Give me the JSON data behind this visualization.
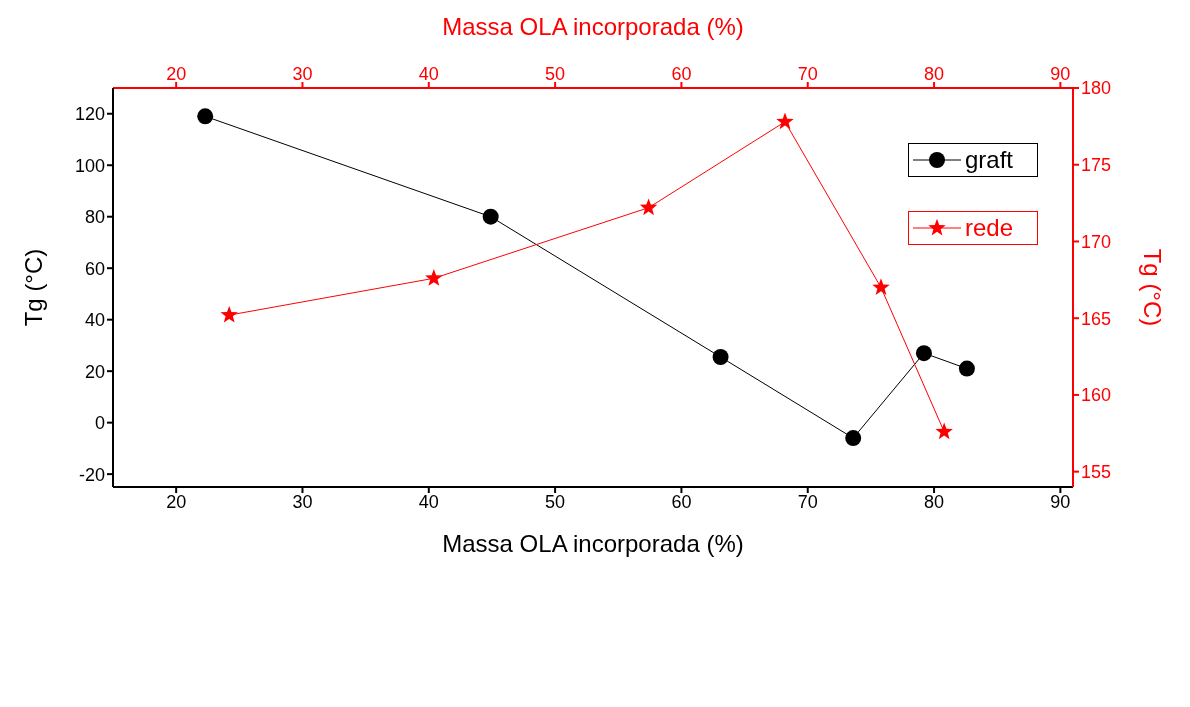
{
  "chart_data": {
    "type": "line",
    "xlabel": "Massa OLA incorporada (%)",
    "x2label": "Massa OLA incorporada (%)",
    "ylabel": "Tg (°C)",
    "y2label": "Tg (°C)",
    "xlim": [
      15,
      91
    ],
    "xticks": [
      20,
      30,
      40,
      50,
      60,
      70,
      80,
      90
    ],
    "x2lim": [
      15,
      91
    ],
    "x2ticks": [
      20,
      30,
      40,
      50,
      60,
      70,
      80,
      90
    ],
    "ylim": [
      -25,
      130
    ],
    "yticks": [
      -20,
      0,
      20,
      40,
      60,
      80,
      100,
      120
    ],
    "y2lim": [
      154,
      180
    ],
    "y2ticks": [
      155,
      160,
      165,
      170,
      175,
      180
    ],
    "legend": "top right",
    "grid": false,
    "series": [
      {
        "name": "graft",
        "color": "#000000",
        "marker": "circle",
        "x": [
          22.3,
          44.9,
          63.1,
          73.6,
          79.2,
          82.6
        ],
        "values": [
          119,
          80,
          25.5,
          -6,
          27,
          21
        ]
      },
      {
        "name": "rede",
        "color": "#ff0000",
        "marker": "star",
        "axis": "y2",
        "x": [
          24.2,
          40.4,
          57.4,
          68.2,
          75.8,
          80.8
        ],
        "values": [
          165.2,
          167.6,
          172.2,
          177.8,
          167.0,
          157.6
        ]
      }
    ]
  }
}
